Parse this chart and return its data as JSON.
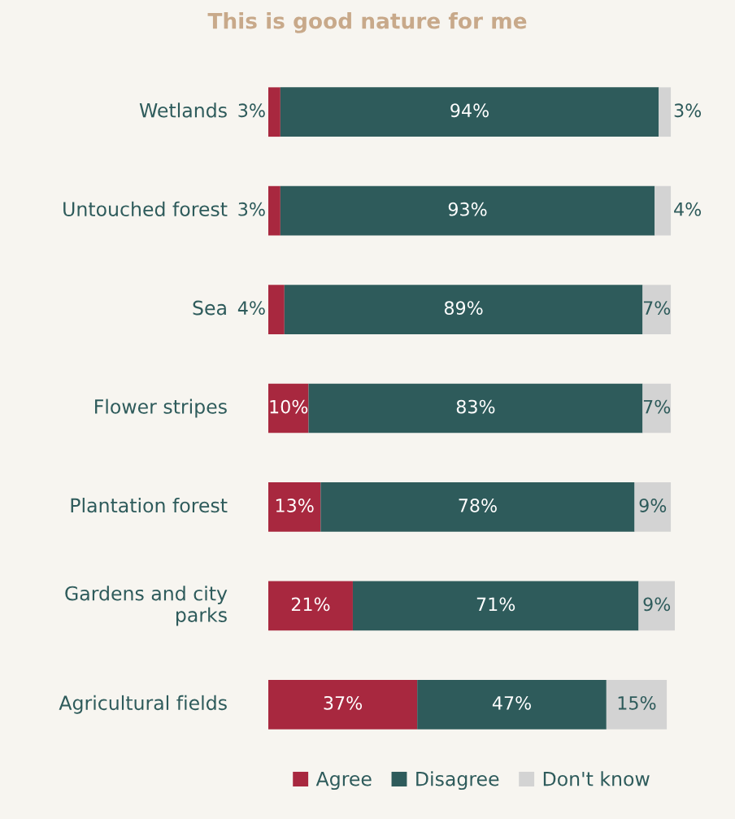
{
  "chart_data": {
    "type": "bar",
    "orientation": "horizontal",
    "stacked": true,
    "title": "This is good nature for me",
    "categories": [
      "Wetlands",
      "Untouched forest",
      "Sea",
      "Flower stripes",
      "Plantation forest",
      "Gardens and city parks",
      "Agricultural fields"
    ],
    "series": [
      {
        "name": "Agree",
        "color": "#a8283f",
        "values": [
          3,
          3,
          4,
          10,
          13,
          21,
          37
        ],
        "value_labels": [
          "3%",
          "3%",
          "4%",
          "10%",
          "13%",
          "21%",
          "37%"
        ]
      },
      {
        "name": "Disagree",
        "color": "#2e5b5b",
        "values": [
          94,
          93,
          89,
          83,
          78,
          71,
          47
        ],
        "value_labels": [
          "94%",
          "93%",
          "89%",
          "83%",
          "78%",
          "71%",
          "47%"
        ]
      },
      {
        "name": "Don't know",
        "color": "#d3d3d3",
        "values": [
          3,
          4,
          7,
          7,
          9,
          9,
          15
        ],
        "value_labels": [
          "3%",
          "4%",
          "7%",
          "7%",
          "9%",
          "9%",
          "15%"
        ]
      }
    ],
    "legend": "bottom",
    "grid": false
  }
}
